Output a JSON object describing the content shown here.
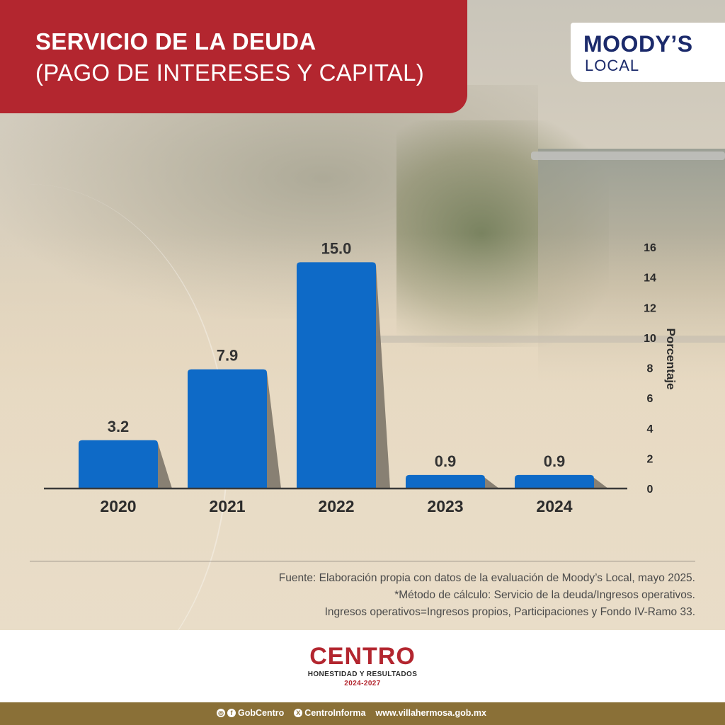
{
  "header": {
    "title_line1": "SERVICIO DE LA DEUDA",
    "title_line2": "(PAGO DE INTERESES Y CAPITAL)"
  },
  "brand": {
    "name": "MOODY’S",
    "sub": "LOCAL"
  },
  "chart_data": {
    "type": "bar",
    "categories": [
      "2020",
      "2021",
      "2022",
      "2023",
      "2024"
    ],
    "values": [
      3.2,
      7.9,
      15.0,
      0.9,
      0.9
    ],
    "value_labels": [
      "3.2",
      "7.9",
      "15.0",
      "0.9",
      "0.9"
    ],
    "ylabel": "Porcentaje",
    "ylim": [
      0,
      16
    ],
    "yticks": [
      0,
      2,
      4,
      6,
      8,
      10,
      12,
      14,
      16
    ],
    "y_axis_position": "right",
    "grid": false,
    "bar_color": "#0e6ac7",
    "shadow_color": "#7d7569"
  },
  "notes": {
    "line1": "Fuente: Elaboración propia con datos de la evaluación de Moody’s Local, mayo 2025.",
    "line2": "*Método de cálculo: Servicio de la deuda/Ingresos operativos.",
    "line3": "Ingresos operativos=Ingresos propios, Participaciones y Fondo IV-Ramo 33."
  },
  "logo": {
    "name": "CENTRO",
    "tagline": "HONESTIDAD Y RESULTADOS",
    "years": "2024-2027"
  },
  "footer": {
    "social1": "GobCentro",
    "social2": "CentroInforma",
    "website": "www.villahermosa.gob.mx"
  },
  "colors": {
    "brand_red": "#b3262f",
    "footer_gold": "#8a7037",
    "moodys_navy": "#1b2a6b"
  }
}
